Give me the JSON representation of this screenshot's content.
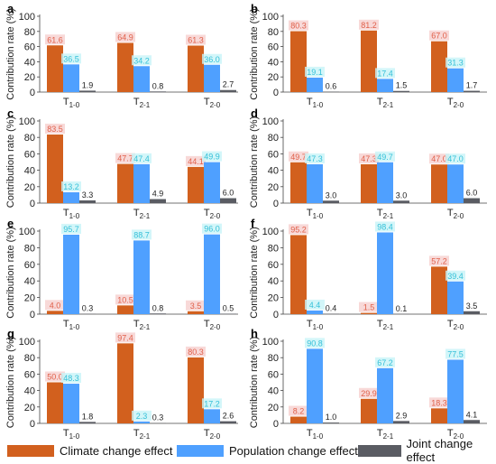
{
  "colors": {
    "climate": "#d2601e",
    "population": "#4fa0ff",
    "joint": "#5a5c63",
    "label_climate": "#e0604a",
    "label_population": "#35c0d8",
    "label_joint": "#222222",
    "highlight_climate": "#f6d0ce",
    "highlight_population": "#c8f4f8"
  },
  "legend": {
    "climate": "Climate change effect",
    "population": "Population change effect",
    "joint": "Joint change effect"
  },
  "chart_data": [
    {
      "type": "bar",
      "panel": "a",
      "categories": [
        "T1-0",
        "T2-1",
        "T2-0"
      ],
      "ylabel": "Contribution rate (%)",
      "ylim": [
        0,
        100
      ],
      "yticks": [
        0,
        20,
        40,
        60,
        80,
        100
      ],
      "series": [
        {
          "name": "Climate change effect",
          "values": [
            61.6,
            64.9,
            61.3
          ]
        },
        {
          "name": "Population change effect",
          "values": [
            36.5,
            34.2,
            36.0
          ]
        },
        {
          "name": "Joint change effect",
          "values": [
            1.9,
            0.8,
            2.7
          ]
        }
      ]
    },
    {
      "type": "bar",
      "panel": "b",
      "categories": [
        "T1-0",
        "T2-1",
        "T2-0"
      ],
      "ylabel": "Contribution rate (%)",
      "ylim": [
        0,
        100
      ],
      "yticks": [
        0,
        20,
        40,
        60,
        80,
        100
      ],
      "series": [
        {
          "name": "Climate change effect",
          "values": [
            80.3,
            81.2,
            67.0
          ]
        },
        {
          "name": "Population change effect",
          "values": [
            19.1,
            17.4,
            31.3
          ]
        },
        {
          "name": "Joint change effect",
          "values": [
            0.6,
            1.5,
            1.7
          ]
        }
      ]
    },
    {
      "type": "bar",
      "panel": "c",
      "categories": [
        "T1-0",
        "T2-1",
        "T2-0"
      ],
      "ylabel": "Contribution rate (%)",
      "ylim": [
        0,
        100
      ],
      "yticks": [
        0,
        20,
        40,
        60,
        80,
        100
      ],
      "series": [
        {
          "name": "Climate change effect",
          "values": [
            83.5,
            47.7,
            44.1
          ]
        },
        {
          "name": "Population change effect",
          "values": [
            13.2,
            47.4,
            49.9
          ]
        },
        {
          "name": "Joint change effect",
          "values": [
            3.3,
            4.9,
            6.0
          ]
        }
      ]
    },
    {
      "type": "bar",
      "panel": "d",
      "categories": [
        "T1-0",
        "T2-1",
        "T2-0"
      ],
      "ylabel": "Contribution rate (%)",
      "ylim": [
        0,
        100
      ],
      "yticks": [
        0,
        20,
        40,
        60,
        80,
        100
      ],
      "series": [
        {
          "name": "Climate change effect",
          "values": [
            49.7,
            47.3,
            47.0
          ]
        },
        {
          "name": "Population change effect",
          "values": [
            47.3,
            49.7,
            47.0
          ]
        },
        {
          "name": "Joint change effect",
          "values": [
            3.0,
            3.0,
            6.0
          ]
        }
      ]
    },
    {
      "type": "bar",
      "panel": "e",
      "categories": [
        "T1-0",
        "T2-1",
        "T2-0"
      ],
      "ylabel": "Contribution rate (%)",
      "ylim": [
        0,
        100
      ],
      "yticks": [
        0,
        20,
        40,
        60,
        80,
        100
      ],
      "series": [
        {
          "name": "Climate change effect",
          "values": [
            4.0,
            10.5,
            3.5
          ]
        },
        {
          "name": "Population change effect",
          "values": [
            95.7,
            88.7,
            96.0
          ]
        },
        {
          "name": "Joint change effect",
          "values": [
            0.3,
            0.8,
            0.5
          ]
        }
      ]
    },
    {
      "type": "bar",
      "panel": "f",
      "categories": [
        "T1-0",
        "T2-1",
        "T2-0"
      ],
      "ylabel": "Contribution rate (%)",
      "ylim": [
        0,
        100
      ],
      "yticks": [
        0,
        20,
        40,
        60,
        80,
        100
      ],
      "series": [
        {
          "name": "Climate change effect",
          "values": [
            95.2,
            1.5,
            57.2
          ]
        },
        {
          "name": "Population change effect",
          "values": [
            4.4,
            98.4,
            39.4
          ]
        },
        {
          "name": "Joint change effect",
          "values": [
            0.4,
            0.1,
            3.5
          ]
        }
      ]
    },
    {
      "type": "bar",
      "panel": "g",
      "categories": [
        "T1-0",
        "T2-1",
        "T2-0"
      ],
      "ylabel": "Contribution rate (%)",
      "ylim": [
        0,
        100
      ],
      "yticks": [
        0,
        20,
        40,
        60,
        80,
        100
      ],
      "series": [
        {
          "name": "Climate change effect",
          "values": [
            50.0,
            97.4,
            80.3
          ]
        },
        {
          "name": "Population change effect",
          "values": [
            48.3,
            2.3,
            17.2
          ]
        },
        {
          "name": "Joint change effect",
          "values": [
            1.8,
            0.3,
            2.6
          ]
        }
      ]
    },
    {
      "type": "bar",
      "panel": "h",
      "categories": [
        "T1-0",
        "T2-1",
        "T2-0"
      ],
      "ylabel": "Contribution rate (%)",
      "ylim": [
        0,
        100
      ],
      "yticks": [
        0,
        20,
        40,
        60,
        80,
        100
      ],
      "series": [
        {
          "name": "Climate change effect",
          "values": [
            8.2,
            29.9,
            18.3
          ]
        },
        {
          "name": "Population change effect",
          "values": [
            90.8,
            67.2,
            77.5
          ]
        },
        {
          "name": "Joint change effect",
          "values": [
            1.0,
            2.9,
            4.1
          ]
        }
      ]
    }
  ]
}
